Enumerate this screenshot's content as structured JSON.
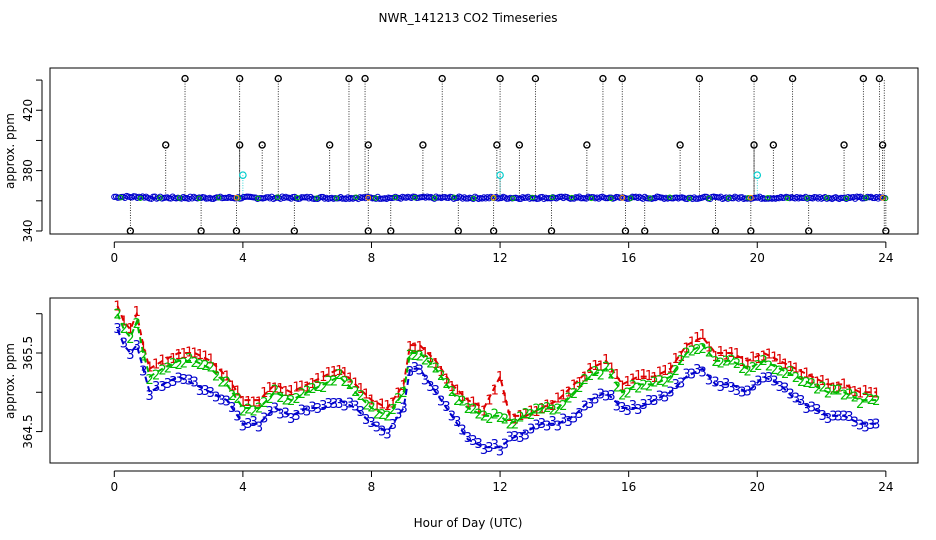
{
  "chart_data": [
    {
      "type": "scatter",
      "title": "NWR_141213  CO2 Timeseries",
      "xlabel": "",
      "ylabel": "approx. ppm",
      "xlim": [
        -2,
        25
      ],
      "ylim": [
        338,
        448
      ],
      "xticks": [
        "0",
        "4",
        "8",
        "12",
        "16",
        "20",
        "24"
      ],
      "yticks": [
        "340",
        "380",
        "420"
      ],
      "colors": {
        "black": "#000000",
        "blue": "#0000cc",
        "cyan": "#00cccc",
        "green": "#00bb00",
        "orange": "#ff9900"
      },
      "baseline": 362,
      "spikes": [
        {
          "x": 0.5,
          "y": 340
        },
        {
          "x": 1.6,
          "y": 397
        },
        {
          "x": 2.2,
          "y": 441
        },
        {
          "x": 2.7,
          "y": 340
        },
        {
          "x": 3.8,
          "y": 340
        },
        {
          "x": 3.9,
          "y": 441
        },
        {
          "x": 3.9,
          "y": 397
        },
        {
          "x": 4.6,
          "y": 397
        },
        {
          "x": 5.1,
          "y": 441
        },
        {
          "x": 5.6,
          "y": 340
        },
        {
          "x": 6.7,
          "y": 397
        },
        {
          "x": 7.3,
          "y": 441
        },
        {
          "x": 7.8,
          "y": 441
        },
        {
          "x": 7.9,
          "y": 397
        },
        {
          "x": 7.9,
          "y": 340
        },
        {
          "x": 8.6,
          "y": 340
        },
        {
          "x": 9.6,
          "y": 397
        },
        {
          "x": 10.2,
          "y": 441
        },
        {
          "x": 10.7,
          "y": 340
        },
        {
          "x": 11.8,
          "y": 340
        },
        {
          "x": 11.9,
          "y": 397
        },
        {
          "x": 12.0,
          "y": 441
        },
        {
          "x": 12.6,
          "y": 397
        },
        {
          "x": 13.1,
          "y": 441
        },
        {
          "x": 13.6,
          "y": 340
        },
        {
          "x": 14.7,
          "y": 397
        },
        {
          "x": 15.2,
          "y": 441
        },
        {
          "x": 15.8,
          "y": 441
        },
        {
          "x": 15.9,
          "y": 340
        },
        {
          "x": 16.5,
          "y": 340
        },
        {
          "x": 17.6,
          "y": 397
        },
        {
          "x": 18.2,
          "y": 441
        },
        {
          "x": 18.7,
          "y": 340
        },
        {
          "x": 19.8,
          "y": 340
        },
        {
          "x": 19.9,
          "y": 397
        },
        {
          "x": 19.9,
          "y": 441
        },
        {
          "x": 20.5,
          "y": 397
        },
        {
          "x": 21.1,
          "y": 441
        },
        {
          "x": 21.6,
          "y": 340
        },
        {
          "x": 22.7,
          "y": 397
        },
        {
          "x": 23.3,
          "y": 441
        },
        {
          "x": 23.8,
          "y": 441
        },
        {
          "x": 23.9,
          "y": 397
        },
        {
          "x": 24.0,
          "y": 340
        }
      ],
      "cyan_points": [
        {
          "x": 4.0,
          "y": 377
        },
        {
          "x": 12.0,
          "y": 377
        },
        {
          "x": 20.0,
          "y": 377
        }
      ]
    },
    {
      "type": "line",
      "title": "",
      "xlabel": "Hour of Day (UTC)",
      "ylabel": "approx. ppm",
      "xlim": [
        -2,
        25
      ],
      "ylim": [
        364.1,
        366.2
      ],
      "xticks": [
        "0",
        "4",
        "8",
        "12",
        "16",
        "20",
        "24"
      ],
      "yticks": [
        "364.5",
        "365.5"
      ],
      "colors": {
        "1": "#dd0000",
        "2": "#00bb00",
        "3": "#0000cc"
      },
      "series": [
        {
          "name": "1",
          "points": [
            [
              0.1,
              366.1
            ],
            [
              0.3,
              365.9
            ],
            [
              0.5,
              365.8
            ],
            [
              0.7,
              366.0
            ],
            [
              0.9,
              365.6
            ],
            [
              1.1,
              365.3
            ],
            [
              1.5,
              365.4
            ],
            [
              2.0,
              365.5
            ],
            [
              2.5,
              365.5
            ],
            [
              3.0,
              365.4
            ],
            [
              3.5,
              365.2
            ],
            [
              4.0,
              364.9
            ],
            [
              4.5,
              364.9
            ],
            [
              5.0,
              365.1
            ],
            [
              5.5,
              365.0
            ],
            [
              6.0,
              365.1
            ],
            [
              6.5,
              365.2
            ],
            [
              7.0,
              365.3
            ],
            [
              7.5,
              365.1
            ],
            [
              8.0,
              364.9
            ],
            [
              8.5,
              364.8
            ],
            [
              9.0,
              365.1
            ],
            [
              9.2,
              365.6
            ],
            [
              9.5,
              365.6
            ],
            [
              10.0,
              365.4
            ],
            [
              10.5,
              365.1
            ],
            [
              11.0,
              364.9
            ],
            [
              11.5,
              364.8
            ],
            [
              12.0,
              365.2
            ],
            [
              12.3,
              364.7
            ],
            [
              12.8,
              364.7
            ],
            [
              13.3,
              364.8
            ],
            [
              13.8,
              364.9
            ],
            [
              14.3,
              365.1
            ],
            [
              14.8,
              365.3
            ],
            [
              15.3,
              365.4
            ],
            [
              15.8,
              365.1
            ],
            [
              16.3,
              365.2
            ],
            [
              16.8,
              365.2
            ],
            [
              17.3,
              365.3
            ],
            [
              17.8,
              365.6
            ],
            [
              18.3,
              365.7
            ],
            [
              18.7,
              365.5
            ],
            [
              19.2,
              365.5
            ],
            [
              19.7,
              365.4
            ],
            [
              20.2,
              365.5
            ],
            [
              20.7,
              365.4
            ],
            [
              21.2,
              365.3
            ],
            [
              21.7,
              365.2
            ],
            [
              22.2,
              365.1
            ],
            [
              22.7,
              365.1
            ],
            [
              23.2,
              365.0
            ],
            [
              23.7,
              365.0
            ]
          ]
        },
        {
          "name": "2",
          "points": [
            [
              0.1,
              366.0
            ],
            [
              0.3,
              365.8
            ],
            [
              0.5,
              365.7
            ],
            [
              0.7,
              365.9
            ],
            [
              0.9,
              365.5
            ],
            [
              1.1,
              365.2
            ],
            [
              1.5,
              365.3
            ],
            [
              2.0,
              365.4
            ],
            [
              2.5,
              365.4
            ],
            [
              3.0,
              365.3
            ],
            [
              3.5,
              365.1
            ],
            [
              4.0,
              364.8
            ],
            [
              4.5,
              364.8
            ],
            [
              5.0,
              365.0
            ],
            [
              5.5,
              364.9
            ],
            [
              6.0,
              365.0
            ],
            [
              6.5,
              365.1
            ],
            [
              7.0,
              365.2
            ],
            [
              7.5,
              365.0
            ],
            [
              8.0,
              364.8
            ],
            [
              8.5,
              364.7
            ],
            [
              9.0,
              365.0
            ],
            [
              9.2,
              365.5
            ],
            [
              9.5,
              365.5
            ],
            [
              10.0,
              365.3
            ],
            [
              10.5,
              365.0
            ],
            [
              11.0,
              364.8
            ],
            [
              11.5,
              364.7
            ],
            [
              12.0,
              364.7
            ],
            [
              12.3,
              364.6
            ],
            [
              12.8,
              364.7
            ],
            [
              13.3,
              364.8
            ],
            [
              13.8,
              364.8
            ],
            [
              14.3,
              365.0
            ],
            [
              14.8,
              365.2
            ],
            [
              15.3,
              365.3
            ],
            [
              15.8,
              365.0
            ],
            [
              16.3,
              365.1
            ],
            [
              16.8,
              365.1
            ],
            [
              17.3,
              365.2
            ],
            [
              17.8,
              365.5
            ],
            [
              18.3,
              365.6
            ],
            [
              18.7,
              365.4
            ],
            [
              19.2,
              365.4
            ],
            [
              19.7,
              365.3
            ],
            [
              20.2,
              365.4
            ],
            [
              20.7,
              365.3
            ],
            [
              21.2,
              365.2
            ],
            [
              21.7,
              365.1
            ],
            [
              22.2,
              365.0
            ],
            [
              22.7,
              365.0
            ],
            [
              23.2,
              364.9
            ],
            [
              23.7,
              364.9
            ]
          ]
        },
        {
          "name": "3",
          "points": [
            [
              0.1,
              365.8
            ],
            [
              0.3,
              365.6
            ],
            [
              0.5,
              365.5
            ],
            [
              0.7,
              365.6
            ],
            [
              0.9,
              365.3
            ],
            [
              1.1,
              365.0
            ],
            [
              1.5,
              365.1
            ],
            [
              2.0,
              365.2
            ],
            [
              2.5,
              365.1
            ],
            [
              3.0,
              365.0
            ],
            [
              3.5,
              364.9
            ],
            [
              4.0,
              364.6
            ],
            [
              4.5,
              364.6
            ],
            [
              5.0,
              364.8
            ],
            [
              5.5,
              364.7
            ],
            [
              6.0,
              364.8
            ],
            [
              6.5,
              364.8
            ],
            [
              7.0,
              364.9
            ],
            [
              7.5,
              364.8
            ],
            [
              8.0,
              364.6
            ],
            [
              8.5,
              364.5
            ],
            [
              9.0,
              364.8
            ],
            [
              9.2,
              365.3
            ],
            [
              9.5,
              365.3
            ],
            [
              10.0,
              365.0
            ],
            [
              10.5,
              364.7
            ],
            [
              11.0,
              364.4
            ],
            [
              11.5,
              364.3
            ],
            [
              12.0,
              364.3
            ],
            [
              12.3,
              364.4
            ],
            [
              12.8,
              364.5
            ],
            [
              13.3,
              364.6
            ],
            [
              13.8,
              364.6
            ],
            [
              14.3,
              364.7
            ],
            [
              14.8,
              364.9
            ],
            [
              15.3,
              365.0
            ],
            [
              15.8,
              364.8
            ],
            [
              16.3,
              364.8
            ],
            [
              16.8,
              364.9
            ],
            [
              17.3,
              365.0
            ],
            [
              17.8,
              365.2
            ],
            [
              18.3,
              365.3
            ],
            [
              18.7,
              365.1
            ],
            [
              19.2,
              365.1
            ],
            [
              19.7,
              365.0
            ],
            [
              20.2,
              365.2
            ],
            [
              20.7,
              365.1
            ],
            [
              21.2,
              364.9
            ],
            [
              21.7,
              364.8
            ],
            [
              22.2,
              364.7
            ],
            [
              22.7,
              364.7
            ],
            [
              23.2,
              364.6
            ],
            [
              23.7,
              364.6
            ]
          ]
        }
      ]
    }
  ]
}
